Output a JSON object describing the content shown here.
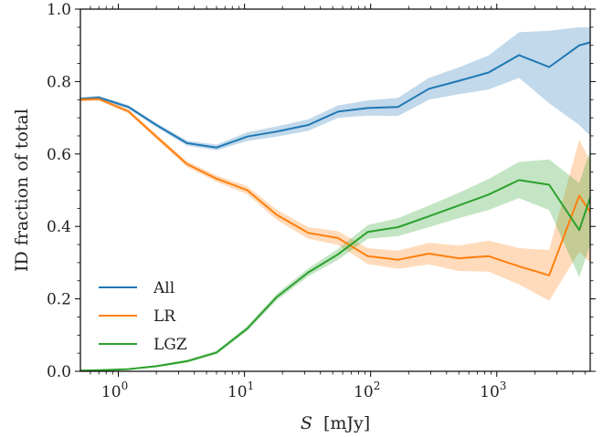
{
  "chart_data": {
    "type": "line",
    "xlabel": "S [mJy]",
    "xlabel_var": "S",
    "xlabel_unit": "[mJy]",
    "ylabel": "ID fraction of total",
    "xscale": "log",
    "xlim": [
      0.5,
      5500
    ],
    "ylim": [
      0.0,
      1.0
    ],
    "grid": false,
    "legend_position": "lower-left",
    "x_ticks": [
      {
        "value": 1,
        "base": "10",
        "exp": "0"
      },
      {
        "value": 10,
        "base": "10",
        "exp": "1"
      },
      {
        "value": 100,
        "base": "10",
        "exp": "2"
      },
      {
        "value": 1000,
        "base": "10",
        "exp": "3"
      }
    ],
    "y_ticks": [
      {
        "value": 0.0,
        "label": "0.0"
      },
      {
        "value": 0.2,
        "label": "0.2"
      },
      {
        "value": 0.4,
        "label": "0.4"
      },
      {
        "value": 0.6,
        "label": "0.6"
      },
      {
        "value": 0.8,
        "label": "0.8"
      },
      {
        "value": 1.0,
        "label": "1.0"
      }
    ],
    "x": [
      0.5,
      0.7,
      1.2,
      2.0,
      3.5,
      6.0,
      10.5,
      18,
      32,
      55,
      95,
      165,
      290,
      500,
      860,
      1500,
      2600,
      4500,
      5500
    ],
    "series": [
      {
        "name": "All",
        "color": "#1f77b4",
        "values": [
          0.752,
          0.756,
          0.73,
          0.68,
          0.63,
          0.618,
          0.648,
          0.662,
          0.68,
          0.717,
          0.727,
          0.73,
          0.78,
          0.802,
          0.825,
          0.873,
          0.84,
          0.9,
          0.908
        ],
        "lower": [
          0.747,
          0.751,
          0.725,
          0.674,
          0.623,
          0.61,
          0.636,
          0.648,
          0.664,
          0.7,
          0.706,
          0.705,
          0.75,
          0.765,
          0.778,
          0.81,
          0.74,
          0.68,
          0.65
        ],
        "upper": [
          0.757,
          0.761,
          0.735,
          0.686,
          0.637,
          0.626,
          0.66,
          0.676,
          0.696,
          0.734,
          0.748,
          0.755,
          0.81,
          0.839,
          0.872,
          0.936,
          0.94,
          0.95,
          0.95
        ]
      },
      {
        "name": "LR",
        "color": "#ff7f0e",
        "values": [
          0.75,
          0.752,
          0.718,
          0.648,
          0.572,
          0.532,
          0.5,
          0.432,
          0.382,
          0.368,
          0.318,
          0.308,
          0.325,
          0.312,
          0.318,
          0.29,
          0.265,
          0.485,
          0.44
        ],
        "lower": [
          0.745,
          0.747,
          0.712,
          0.641,
          0.564,
          0.523,
          0.489,
          0.418,
          0.366,
          0.349,
          0.296,
          0.283,
          0.295,
          0.277,
          0.275,
          0.24,
          0.195,
          0.33,
          0.3
        ],
        "upper": [
          0.755,
          0.757,
          0.724,
          0.655,
          0.58,
          0.541,
          0.511,
          0.446,
          0.398,
          0.387,
          0.34,
          0.333,
          0.355,
          0.347,
          0.361,
          0.34,
          0.335,
          0.64,
          0.58
        ]
      },
      {
        "name": "LGZ",
        "color": "#2ca02c",
        "values": [
          0.002,
          0.003,
          0.006,
          0.014,
          0.028,
          0.052,
          0.118,
          0.205,
          0.273,
          0.323,
          0.385,
          0.398,
          0.428,
          0.458,
          0.488,
          0.528,
          0.515,
          0.39,
          0.48
        ],
        "lower": [
          0.0,
          0.001,
          0.004,
          0.011,
          0.024,
          0.047,
          0.111,
          0.196,
          0.262,
          0.308,
          0.366,
          0.373,
          0.398,
          0.423,
          0.445,
          0.478,
          0.445,
          0.26,
          0.35
        ],
        "upper": [
          0.004,
          0.005,
          0.008,
          0.017,
          0.032,
          0.057,
          0.125,
          0.214,
          0.284,
          0.338,
          0.404,
          0.423,
          0.458,
          0.493,
          0.531,
          0.578,
          0.585,
          0.52,
          0.61
        ]
      }
    ]
  }
}
